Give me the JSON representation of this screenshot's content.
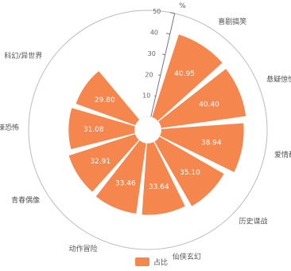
{
  "chart_data": {
    "type": "bar",
    "subtype": "polar",
    "categories": [
      "喜剧搞笑",
      "悬疑惊悚",
      "爱情都市",
      "历史谍战",
      "仙侠玄幻",
      "动作冒险",
      "青春偶像",
      "惊悚恐怖",
      "科幻/异世界"
    ],
    "values": [
      40.95,
      40.4,
      38.94,
      35.1,
      33.64,
      33.46,
      32.91,
      31.08,
      29.8
    ],
    "value_labels": [
      "40.95",
      "40.40",
      "38.94",
      "35.10",
      "33.64",
      "33.46",
      "32.91",
      "31.08",
      "29.80"
    ],
    "series": [
      {
        "name": "占比",
        "values": [
          40.95,
          40.4,
          38.94,
          35.1,
          33.64,
          33.46,
          32.91,
          31.08,
          29.8
        ],
        "color": "#f4864e"
      }
    ],
    "radial_axis": {
      "unit": "%",
      "ticks": [
        "10",
        "20",
        "30",
        "40",
        "50"
      ],
      "range": [
        0,
        50
      ]
    },
    "legend": {
      "position": "bottom",
      "label": "占比"
    },
    "colors": {
      "bar": "#f4864e",
      "axis": "#777777",
      "label": "#555555"
    }
  }
}
